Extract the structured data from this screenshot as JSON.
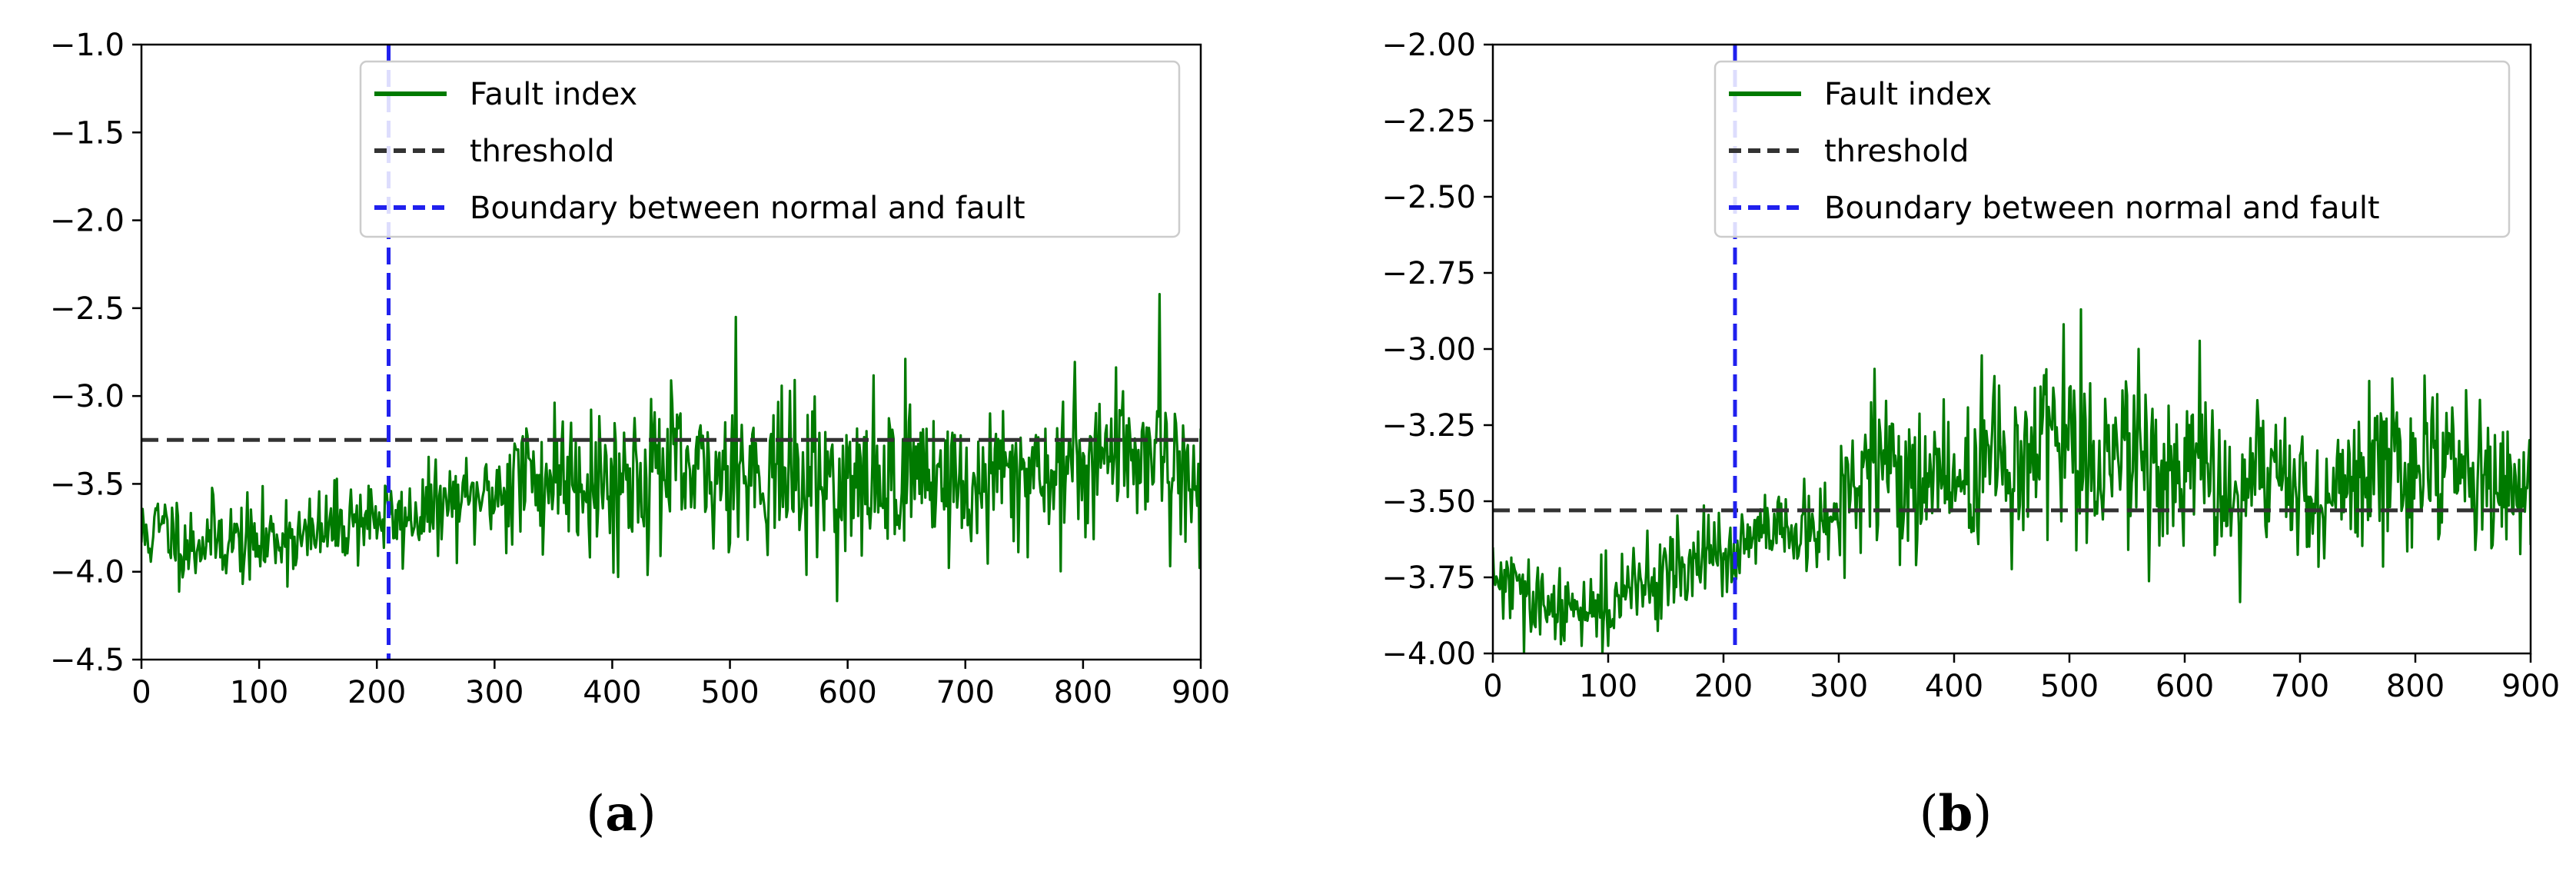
{
  "chart_data": [
    {
      "panel": "(a)",
      "panel_letter": "a",
      "type": "line",
      "xlim": [
        0,
        900
      ],
      "ylim": [
        -4.5,
        -1.0
      ],
      "xticks": [
        0,
        100,
        200,
        300,
        400,
        500,
        600,
        700,
        800,
        900
      ],
      "yticks": [
        -1.0,
        -1.5,
        -2.0,
        -2.5,
        -3.0,
        -3.5,
        -4.0,
        -4.5
      ],
      "ytick_labels": [
        "−1.0",
        "−1.5",
        "−2.0",
        "−2.5",
        "−3.0",
        "−3.5",
        "−4.0",
        "−4.5"
      ],
      "xtick_labels": [
        "0",
        "100",
        "200",
        "300",
        "400",
        "500",
        "600",
        "700",
        "800",
        "900"
      ],
      "threshold": -3.25,
      "boundary_x": 210,
      "legend": {
        "placement": "upper-center",
        "entries": [
          "Fault index",
          "threshold",
          "Boundary between normal and fault"
        ]
      },
      "colors": {
        "fault_index": "#007a00",
        "threshold": "#333333",
        "boundary": "#2020ee"
      },
      "series": [
        {
          "name": "Fault index",
          "x": [
            0,
            20,
            40,
            60,
            80,
            100,
            120,
            140,
            160,
            180,
            200,
            220,
            240,
            260,
            280,
            300,
            320,
            340,
            360,
            380,
            400,
            420,
            440,
            460,
            480,
            500,
            520,
            540,
            560,
            580,
            600,
            620,
            640,
            660,
            680,
            700,
            720,
            740,
            760,
            780,
            800,
            820,
            840,
            860,
            880,
            900
          ],
          "y": [
            -3.8,
            -3.75,
            -3.85,
            -3.8,
            -3.82,
            -3.85,
            -3.78,
            -3.82,
            -3.75,
            -3.7,
            -3.68,
            -3.72,
            -3.65,
            -3.62,
            -3.6,
            -3.55,
            -3.45,
            -3.5,
            -3.4,
            -3.45,
            -3.5,
            -3.45,
            -3.4,
            -3.45,
            -3.5,
            -3.4,
            -3.45,
            -3.4,
            -3.5,
            -3.45,
            -3.55,
            -3.5,
            -3.45,
            -3.4,
            -3.45,
            -3.55,
            -3.5,
            -3.45,
            -3.4,
            -3.45,
            -3.35,
            -3.3,
            -3.35,
            -3.25,
            -3.45,
            -3.5
          ],
          "y_min": -4.25,
          "y_max": -2.42,
          "peaks": [
            {
              "x": 505,
              "y": -2.55
            },
            {
              "x": 865,
              "y": -2.42
            }
          ]
        }
      ]
    },
    {
      "panel": "(b)",
      "panel_letter": "b",
      "type": "line",
      "xlim": [
        0,
        900
      ],
      "ylim": [
        -4.0,
        -2.0
      ],
      "xticks": [
        0,
        100,
        200,
        300,
        400,
        500,
        600,
        700,
        800,
        900
      ],
      "yticks": [
        -2.0,
        -2.25,
        -2.5,
        -2.75,
        -3.0,
        -3.25,
        -3.5,
        -3.75,
        -4.0
      ],
      "ytick_labels": [
        "−2.00",
        "−2.25",
        "−2.50",
        "−2.75",
        "−3.00",
        "−3.25",
        "−3.50",
        "−3.75",
        "−4.00"
      ],
      "xtick_labels": [
        "0",
        "100",
        "200",
        "300",
        "400",
        "500",
        "600",
        "700",
        "800",
        "900"
      ],
      "threshold": -3.53,
      "boundary_x": 210,
      "legend": {
        "placement": "upper-center",
        "entries": [
          "Fault index",
          "threshold",
          "Boundary between normal and fault"
        ]
      },
      "colors": {
        "fault_index": "#007a00",
        "threshold": "#333333",
        "boundary": "#2020ee"
      },
      "series": [
        {
          "name": "Fault index",
          "x": [
            0,
            20,
            40,
            60,
            80,
            100,
            120,
            140,
            160,
            180,
            200,
            220,
            240,
            260,
            280,
            300,
            320,
            340,
            360,
            380,
            400,
            420,
            440,
            460,
            480,
            500,
            520,
            540,
            560,
            580,
            600,
            620,
            640,
            660,
            680,
            700,
            720,
            740,
            760,
            780,
            800,
            820,
            840,
            860,
            880,
            900
          ],
          "y": [
            -3.75,
            -3.8,
            -3.85,
            -3.88,
            -3.82,
            -3.85,
            -3.8,
            -3.75,
            -3.72,
            -3.7,
            -3.68,
            -3.65,
            -3.6,
            -3.62,
            -3.6,
            -3.55,
            -3.4,
            -3.38,
            -3.45,
            -3.4,
            -3.45,
            -3.4,
            -3.35,
            -3.4,
            -3.3,
            -3.35,
            -3.4,
            -3.3,
            -3.35,
            -3.4,
            -3.45,
            -3.4,
            -3.5,
            -3.45,
            -3.4,
            -3.45,
            -3.5,
            -3.45,
            -3.4,
            -3.42,
            -3.35,
            -3.38,
            -3.35,
            -3.4,
            -3.45,
            -3.5
          ],
          "y_min": -4.0,
          "y_max": -2.86,
          "peaks": [
            {
              "x": 510,
              "y": -2.87
            },
            {
              "x": 560,
              "y": -3.0
            }
          ]
        }
      ]
    }
  ]
}
